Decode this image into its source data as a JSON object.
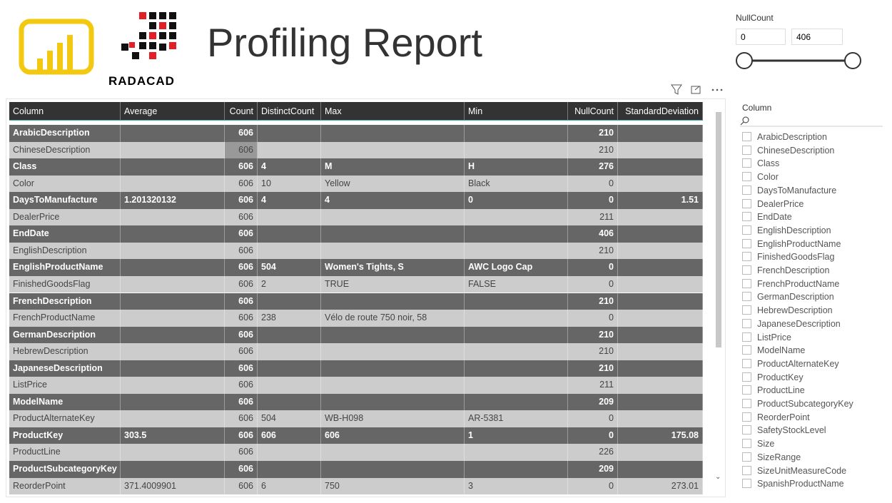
{
  "header": {
    "title": "Profiling Report",
    "logo_text": "RADACAD"
  },
  "null_slicer": {
    "title": "NullCount",
    "min": "0",
    "max": "406"
  },
  "table": {
    "columns": [
      "Column",
      "Average",
      "Count",
      "DistinctCount",
      "Max",
      "Min",
      "NullCount",
      "StandardDeviation"
    ],
    "rows": [
      [
        "ArabicDescription",
        null,
        606,
        null,
        null,
        null,
        210,
        null
      ],
      [
        "ChineseDescription",
        null,
        606,
        null,
        null,
        null,
        210,
        null
      ],
      [
        "Class",
        null,
        606,
        4,
        "M",
        "H",
        276,
        null
      ],
      [
        "Color",
        null,
        606,
        10,
        "Yellow",
        "Black",
        0,
        null
      ],
      [
        "DaysToManufacture",
        1.201320132,
        606,
        4,
        4,
        0,
        0,
        1.51
      ],
      [
        "DealerPrice",
        null,
        606,
        null,
        null,
        null,
        211,
        null
      ],
      [
        "EndDate",
        null,
        606,
        null,
        null,
        null,
        406,
        null
      ],
      [
        "EnglishDescription",
        null,
        606,
        null,
        null,
        null,
        210,
        null
      ],
      [
        "EnglishProductName",
        null,
        606,
        504,
        "Women's Tights, S",
        "AWC Logo Cap",
        0,
        null
      ],
      [
        "FinishedGoodsFlag",
        null,
        606,
        2,
        "TRUE",
        "FALSE",
        0,
        null
      ],
      [
        "FrenchDescription",
        null,
        606,
        null,
        null,
        null,
        210,
        null
      ],
      [
        "FrenchProductName",
        null,
        606,
        238,
        "Vélo de route 750 noir, 58",
        null,
        0,
        null
      ],
      [
        "GermanDescription",
        null,
        606,
        null,
        null,
        null,
        210,
        null
      ],
      [
        "HebrewDescription",
        null,
        606,
        null,
        null,
        null,
        210,
        null
      ],
      [
        "JapaneseDescription",
        null,
        606,
        null,
        null,
        null,
        210,
        null
      ],
      [
        "ListPrice",
        null,
        606,
        null,
        null,
        null,
        211,
        null
      ],
      [
        "ModelName",
        null,
        606,
        null,
        null,
        null,
        209,
        null
      ],
      [
        "ProductAlternateKey",
        null,
        606,
        504,
        "WB-H098",
        "AR-5381",
        0,
        null
      ],
      [
        "ProductKey",
        303.5,
        606,
        606,
        606,
        1,
        0,
        175.08
      ],
      [
        "ProductLine",
        null,
        606,
        null,
        null,
        null,
        226,
        null
      ],
      [
        "ProductSubcategoryKey",
        null,
        606,
        null,
        null,
        null,
        209,
        null
      ],
      [
        "ReorderPoint",
        371.4009901,
        606,
        6,
        750,
        3,
        0,
        273.01
      ]
    ]
  },
  "column_slicer": {
    "title": "Column",
    "items": [
      "ArabicDescription",
      "ChineseDescription",
      "Class",
      "Color",
      "DaysToManufacture",
      "DealerPrice",
      "EndDate",
      "EnglishDescription",
      "EnglishProductName",
      "FinishedGoodsFlag",
      "FrenchDescription",
      "FrenchProductName",
      "GermanDescription",
      "HebrewDescription",
      "JapaneseDescription",
      "ListPrice",
      "ModelName",
      "ProductAlternateKey",
      "ProductKey",
      "ProductLine",
      "ProductSubcategoryKey",
      "ReorderPoint",
      "SafetyStockLevel",
      "Size",
      "SizeRange",
      "SizeUnitMeasureCode",
      "SpanishProductName"
    ]
  }
}
